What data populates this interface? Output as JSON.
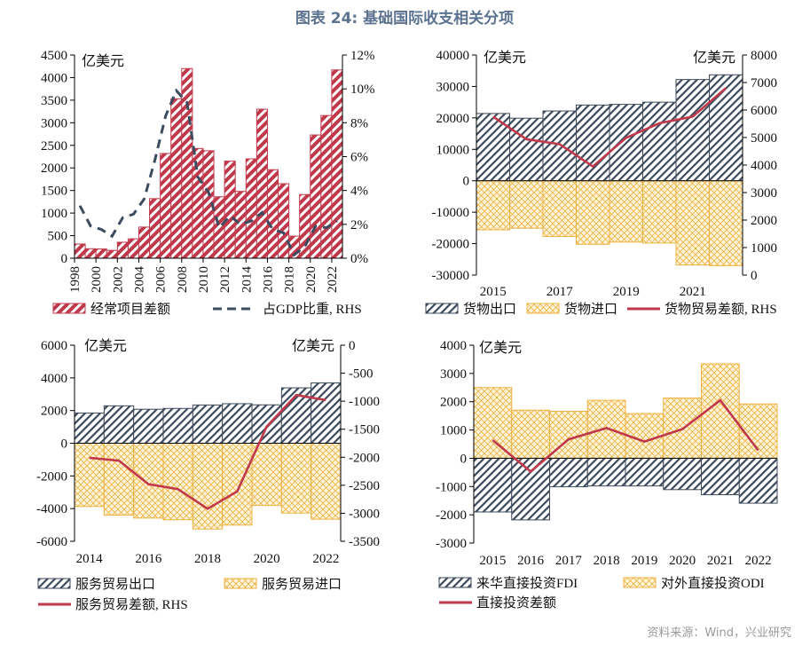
{
  "title": "图表 24: 基础国际收支相关分项",
  "source": "资料来源：Wind，兴业研究",
  "colors": {
    "red": "#c0394b",
    "navy": "#3d4a5c",
    "yellow": "#eeb040",
    "yellow_bg": "#fff5d8",
    "title": "#5b7290"
  },
  "chart_data": [
    {
      "type": "bar",
      "unit_left": "亿美元",
      "categories": [
        "1998",
        "1999",
        "2000",
        "2001",
        "2002",
        "2003",
        "2004",
        "2005",
        "2006",
        "2007",
        "2008",
        "2009",
        "2010",
        "2011",
        "2012",
        "2013",
        "2014",
        "2015",
        "2016",
        "2017",
        "2018",
        "2019",
        "2020",
        "2021",
        "2022"
      ],
      "tick_labels": [
        "1998",
        "2000",
        "2002",
        "2004",
        "2006",
        "2008",
        "2010",
        "2012",
        "2014",
        "2016",
        "2018",
        "2020",
        "2022"
      ],
      "ylim": [
        0,
        4500
      ],
      "ystep": 500,
      "y2lim": [
        0,
        12
      ],
      "y2step": 2,
      "y2suffix": "%",
      "series": [
        {
          "name": "经常项目差额",
          "kind": "bar",
          "style": "red-hatch",
          "axis": "left",
          "values": [
            315,
            210,
            205,
            174,
            354,
            430,
            690,
            1320,
            2320,
            3530,
            4200,
            2430,
            2380,
            1360,
            2150,
            1480,
            2200,
            3300,
            1960,
            1650,
            490,
            1410,
            2730,
            3160,
            4170
          ]
        },
        {
          "name": "占GDP比重, RHS",
          "kind": "line",
          "style": "navy-dash",
          "axis": "right",
          "values": [
            3.1,
            1.9,
            1.7,
            1.3,
            2.4,
            2.6,
            3.5,
            5.8,
            8.4,
            9.9,
            9.2,
            4.8,
            3.9,
            1.8,
            2.5,
            2.0,
            2.2,
            2.7,
            1.7,
            1.5,
            0.2,
            0.7,
            1.9,
            1.8,
            2.2
          ]
        }
      ]
    },
    {
      "type": "bar",
      "unit_left": "亿美元",
      "unit_right": "亿美元",
      "categories": [
        "2015",
        "2016",
        "2017",
        "2018",
        "2019",
        "2020",
        "2021",
        "2022"
      ],
      "tick_labels": [
        "2015",
        "2017",
        "2019",
        "2021"
      ],
      "ylim": [
        -30000,
        40000
      ],
      "ystep": 10000,
      "y2lim": [
        0,
        8000
      ],
      "y2step": 1000,
      "series": [
        {
          "name": "货物出口",
          "kind": "bar",
          "style": "navy-hatch",
          "axis": "left",
          "values": [
            21400,
            19900,
            22200,
            24100,
            24300,
            25000,
            32200,
            33700
          ]
        },
        {
          "name": "货物进口",
          "kind": "bar",
          "style": "yellow-cross",
          "axis": "left",
          "values": [
            -15600,
            -15100,
            -17700,
            -20200,
            -19500,
            -19800,
            -26800,
            -27000
          ]
        },
        {
          "name": "货物贸易差额, RHS",
          "kind": "line",
          "style": "red-line",
          "axis": "right",
          "values": [
            5760,
            4940,
            4760,
            3950,
            4990,
            5520,
            5760,
            6800
          ]
        }
      ]
    },
    {
      "type": "bar",
      "unit_left": "亿美元",
      "unit_right": "亿美元",
      "categories": [
        "2014",
        "2015",
        "2016",
        "2017",
        "2018",
        "2019",
        "2020",
        "2021",
        "2022"
      ],
      "tick_labels": [
        "2014",
        "2016",
        "2018",
        "2020",
        "2022"
      ],
      "ylim": [
        -6000,
        6000
      ],
      "ystep": 2000,
      "y2lim": [
        -3500,
        0
      ],
      "y2step": 500,
      "series": [
        {
          "name": "服务贸易出口",
          "kind": "bar",
          "style": "navy-hatch",
          "axis": "left",
          "values": [
            1850,
            2290,
            2080,
            2130,
            2340,
            2420,
            2350,
            3390,
            3690
          ]
        },
        {
          "name": "服务贸易进口",
          "kind": "bar",
          "style": "yellow-cross",
          "axis": "left",
          "values": [
            -3870,
            -4400,
            -4580,
            -4680,
            -5250,
            -5010,
            -3810,
            -4270,
            -4650
          ]
        },
        {
          "name": "服务贸易差额, RHS",
          "kind": "line",
          "style": "red-line",
          "axis": "right",
          "values": [
            -2010,
            -2060,
            -2480,
            -2570,
            -2920,
            -2610,
            -1450,
            -890,
            -980
          ]
        }
      ]
    },
    {
      "type": "bar",
      "unit_left": "亿美元",
      "categories": [
        "2015",
        "2016",
        "2017",
        "2018",
        "2019",
        "2020",
        "2021",
        "2022"
      ],
      "tick_labels": [
        "2015",
        "2016",
        "2017",
        "2018",
        "2019",
        "2020",
        "2021",
        "2022"
      ],
      "ylim": [
        -3000,
        4000
      ],
      "ystep": 1000,
      "series": [
        {
          "name": "来华直接投资FDI",
          "kind": "bar",
          "style": "navy-hatch",
          "axis": "left",
          "values": [
            -1900,
            -2180,
            -1010,
            -980,
            -980,
            -1110,
            -1290,
            -1590
          ]
        },
        {
          "name": "对外直接投资ODI",
          "kind": "bar",
          "style": "yellow-cross",
          "axis": "left",
          "values": [
            2500,
            1700,
            1660,
            2050,
            1580,
            2130,
            3340,
            1920
          ]
        },
        {
          "name": "直接投资差额",
          "kind": "line",
          "style": "red-line",
          "axis": "left",
          "values": [
            640,
            -470,
            670,
            1070,
            590,
            1030,
            2050,
            280
          ]
        }
      ]
    }
  ]
}
